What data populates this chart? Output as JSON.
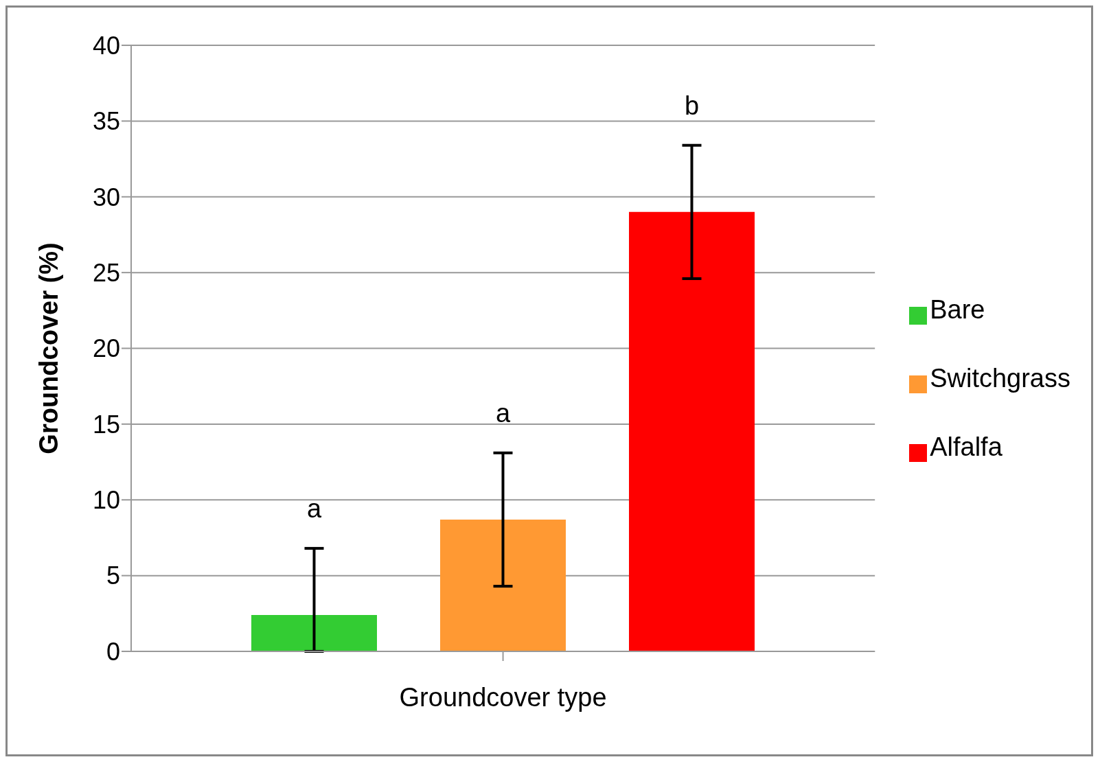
{
  "chart_data": {
    "type": "bar",
    "xlabel": "Groundcover type",
    "ylabel": "Groundcover (%)",
    "categories": [
      null
    ],
    "series": [
      {
        "name": "Bare",
        "color": "#33cc33",
        "values": [
          2.4
        ],
        "errors": [
          [
            0,
            6.8
          ]
        ]
      },
      {
        "name": "Switchgrass",
        "color": "#ff9933",
        "values": [
          8.7
        ],
        "errors": [
          4.4
        ]
      },
      {
        "name": "Alfalfa",
        "color": "#ff0000",
        "values": [
          29.0
        ],
        "errors": [
          4.4
        ]
      }
    ],
    "annotations": [
      "a",
      "a",
      "b"
    ],
    "ylim": [
      0,
      40
    ],
    "yticks": [
      0,
      5,
      10,
      15,
      20,
      25,
      30,
      35,
      40
    ],
    "grid": "y",
    "legend": "right"
  }
}
